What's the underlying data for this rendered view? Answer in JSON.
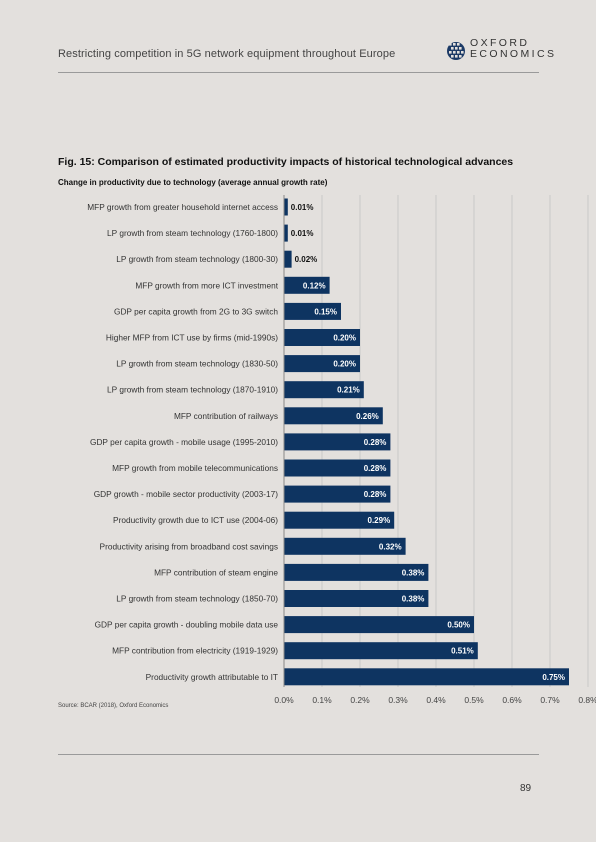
{
  "header": {
    "title": "Restricting competition in 5G network equipment throughout Europe",
    "logo_line1": "OXFORD",
    "logo_line2": "ECONOMICS"
  },
  "figure": {
    "title": "Fig. 15: Comparison of estimated productivity impacts of historical technological advances",
    "subtitle": "Change in productivity due to technology (average annual growth rate)",
    "source": "Source: BCAR (2018), Oxford Economics"
  },
  "page_number": "89",
  "colors": {
    "bar": "#0e3461",
    "grid": "#c4c4c4",
    "axis": "#888888",
    "background": "#e3e0dd"
  },
  "chart_data": {
    "type": "bar",
    "orientation": "horizontal",
    "title": "Fig. 15: Comparison of estimated productivity impacts of historical technological advances",
    "subtitle": "Change in productivity due to technology (average annual growth rate)",
    "categories": [
      "MFP growth from greater household internet access",
      "LP growth from steam technology (1760-1800)",
      "LP growth from steam technology (1800-30)",
      "MFP growth from more ICT investment",
      "GDP per capita growth from 2G to 3G switch",
      "Higher MFP from ICT use by firms (mid-1990s)",
      "LP growth from steam technology (1830-50)",
      "LP growth from steam technology (1870-1910)",
      "MFP contribution of railways",
      "GDP per capita growth - mobile usage (1995-2010)",
      "MFP growth from mobile telecommunications",
      "GDP growth - mobile sector productivity (2003-17)",
      "Productivity growth due to ICT use (2004-06)",
      "Productivity arising from broadband cost savings",
      "MFP contribution of steam engine",
      "LP growth from steam technology (1850-70)",
      "GDP per capita growth - doubling mobile data use",
      "MFP contribution from electricity (1919-1929)",
      "Productivity growth attributable to IT"
    ],
    "values": [
      0.01,
      0.01,
      0.02,
      0.12,
      0.15,
      0.2,
      0.2,
      0.21,
      0.26,
      0.28,
      0.28,
      0.28,
      0.29,
      0.32,
      0.38,
      0.38,
      0.5,
      0.51,
      0.75
    ],
    "value_labels": [
      "0.01%",
      "0.01%",
      "0.02%",
      "0.12%",
      "0.15%",
      "0.20%",
      "0.20%",
      "0.21%",
      "0.26%",
      "0.28%",
      "0.28%",
      "0.28%",
      "0.29%",
      "0.32%",
      "0.38%",
      "0.38%",
      "0.50%",
      "0.51%",
      "0.75%"
    ],
    "xlim": [
      0,
      0.8
    ],
    "xticks": [
      "0.0%",
      "0.1%",
      "0.2%",
      "0.3%",
      "0.4%",
      "0.5%",
      "0.6%",
      "0.7%",
      "0.8%"
    ],
    "grid": true,
    "legend": "none"
  }
}
